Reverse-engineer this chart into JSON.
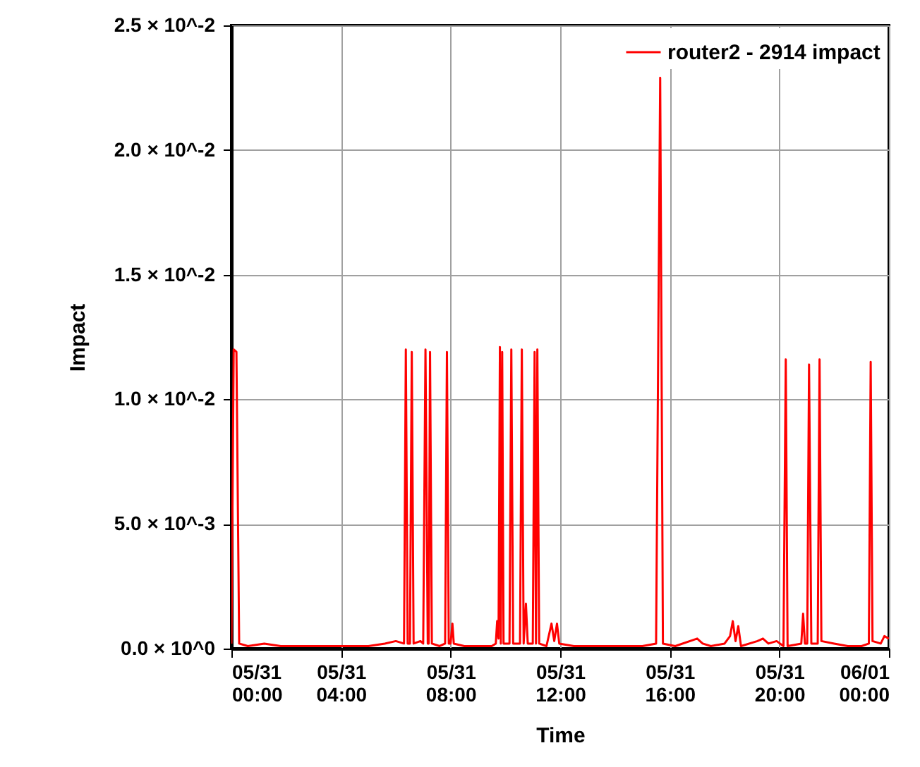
{
  "chart_data": {
    "type": "line",
    "xlabel": "Time",
    "ylabel": "Impact",
    "x": [
      "--05-31T00:00",
      "--05-31T00:05",
      "--05-31T00:11",
      "--05-31T00:17",
      "--05-31T00:36",
      "--05-31T01:12",
      "--05-31T01:48",
      "--05-31T02:24",
      "--05-31T03:00",
      "--05-31T03:36",
      "--05-31T04:18",
      "--05-31T05:00",
      "--05-31T05:36",
      "--05-31T06:00",
      "--05-31T06:18",
      "--05-31T06:22",
      "--05-31T06:26",
      "--05-31T06:31",
      "--05-31T06:35",
      "--05-31T06:39",
      "--05-31T06:54",
      "--05-31T07:00",
      "--05-31T07:05",
      "--05-31T07:10",
      "--05-31T07:12",
      "--05-31T07:15",
      "--05-31T07:19",
      "--05-31T07:36",
      "--05-31T07:48",
      "--05-31T07:52",
      "--05-31T07:56",
      "--05-31T08:00",
      "--05-31T08:04",
      "--05-31T08:07",
      "--05-31T08:30",
      "--05-31T09:00",
      "--05-31T09:30",
      "--05-31T09:39",
      "--05-31T09:42",
      "--05-31T09:45",
      "--05-31T09:48",
      "--05-31T09:50",
      "--05-31T09:53",
      "--05-31T09:56",
      "--05-31T10:09",
      "--05-31T10:13",
      "--05-31T10:17",
      "--05-31T10:32",
      "--05-31T10:36",
      "--05-31T10:40",
      "--05-31T10:45",
      "--05-31T10:49",
      "--05-31T11:00",
      "--05-31T11:04",
      "--05-31T11:07",
      "--05-31T11:10",
      "--05-31T11:14",
      "--05-31T11:30",
      "--05-31T11:41",
      "--05-31T11:47",
      "--05-31T11:53",
      "--05-31T11:58",
      "--05-31T12:30",
      "--05-31T13:00",
      "--05-31T13:30",
      "--05-31T14:00",
      "--05-31T14:30",
      "--05-31T15:00",
      "--05-31T15:30",
      "--05-31T15:39",
      "--05-31T15:45",
      "--05-31T16:12",
      "--05-31T17:00",
      "--05-31T17:12",
      "--05-31T17:30",
      "--05-31T18:00",
      "--05-31T18:12",
      "--05-31T18:18",
      "--05-31T18:24",
      "--05-31T18:30",
      "--05-31T18:36",
      "--05-31T19:12",
      "--05-31T19:24",
      "--05-31T19:36",
      "--05-31T19:54",
      "--05-31T20:09",
      "--05-31T20:14",
      "--05-31T20:18",
      "--05-31T20:48",
      "--05-31T20:52",
      "--05-31T20:56",
      "--05-31T21:01",
      "--05-31T21:05",
      "--05-31T21:10",
      "--05-31T21:24",
      "--05-31T21:28",
      "--05-31T21:32",
      "--05-31T22:00",
      "--05-31T22:30",
      "--05-31T23:00",
      "--05-31T23:16",
      "--05-31T23:20",
      "--05-31T23:24",
      "--05-31T23:42",
      "--05-31T23:50",
      "--06-01T00:00"
    ],
    "series": [
      {
        "name": "router2 - 2914 impact",
        "color": "#ff0000",
        "values": [
          0.0002,
          0.012,
          0.0119,
          0.0002,
          0.0001,
          0.0002,
          0.0001,
          0.0001,
          0.0001,
          0.0001,
          0.0001,
          0.0001,
          0.0002,
          0.0003,
          0.0002,
          0.012,
          0.0002,
          0.0002,
          0.0119,
          0.0002,
          0.0003,
          0.0002,
          0.012,
          0.0002,
          0.0002,
          0.0119,
          0.0002,
          0.0001,
          0.0002,
          0.0119,
          0.0002,
          0.0002,
          0.001,
          0.0002,
          0.0001,
          0.0001,
          0.0001,
          0.0002,
          0.0011,
          0.0004,
          0.0121,
          0.0002,
          0.0119,
          0.0002,
          0.0002,
          0.012,
          0.0002,
          0.0002,
          0.012,
          0.0002,
          0.0018,
          0.0002,
          0.0002,
          0.0119,
          0.0002,
          0.012,
          0.0002,
          0.0001,
          0.001,
          0.0003,
          0.001,
          0.0002,
          0.0001,
          0.0001,
          0.0001,
          0.0001,
          0.0001,
          0.0001,
          0.0002,
          0.0229,
          0.0002,
          0.0001,
          0.0004,
          0.0002,
          0.0001,
          0.0002,
          0.0005,
          0.0011,
          0.0003,
          0.0009,
          0.0001,
          0.0003,
          0.0004,
          0.0002,
          0.0003,
          0.0001,
          0.0116,
          0.0001,
          0.0002,
          0.0014,
          0.0002,
          0.0002,
          0.0114,
          0.0002,
          0.0002,
          0.0116,
          0.0003,
          0.0002,
          0.0001,
          0.0001,
          0.0002,
          0.0115,
          0.0003,
          0.0002,
          0.0005,
          0.0004
        ]
      }
    ],
    "xlim": [
      "--05-31T00:00",
      "--06-01T00:00"
    ],
    "xticks": [
      {
        "value": "--05-31T00:00",
        "label": "05/31\n00:00"
      },
      {
        "value": "--05-31T04:00",
        "label": "05/31\n04:00"
      },
      {
        "value": "--05-31T08:00",
        "label": "05/31\n08:00"
      },
      {
        "value": "--05-31T12:00",
        "label": "05/31\n12:00"
      },
      {
        "value": "--05-31T16:00",
        "label": "05/31\n16:00"
      },
      {
        "value": "--05-31T20:00",
        "label": "05/31\n20:00"
      },
      {
        "value": "--06-01T00:00",
        "label": "06/01\n00:00"
      }
    ],
    "ylim": [
      0,
      0.025
    ],
    "yticks": [
      {
        "value": 0,
        "label": "0.0 × 10^0"
      },
      {
        "value": 0.005,
        "label": "5.0 × 10^-3"
      },
      {
        "value": 0.01,
        "label": "1.0 × 10^-2"
      },
      {
        "value": 0.015,
        "label": "1.5 × 10^-2"
      },
      {
        "value": 0.02,
        "label": "2.0 × 10^-2"
      },
      {
        "value": 0.025,
        "label": "2.5 × 10^-2"
      }
    ],
    "grid": true,
    "legend": "top right",
    "line_style": "solid",
    "marker": "none"
  }
}
